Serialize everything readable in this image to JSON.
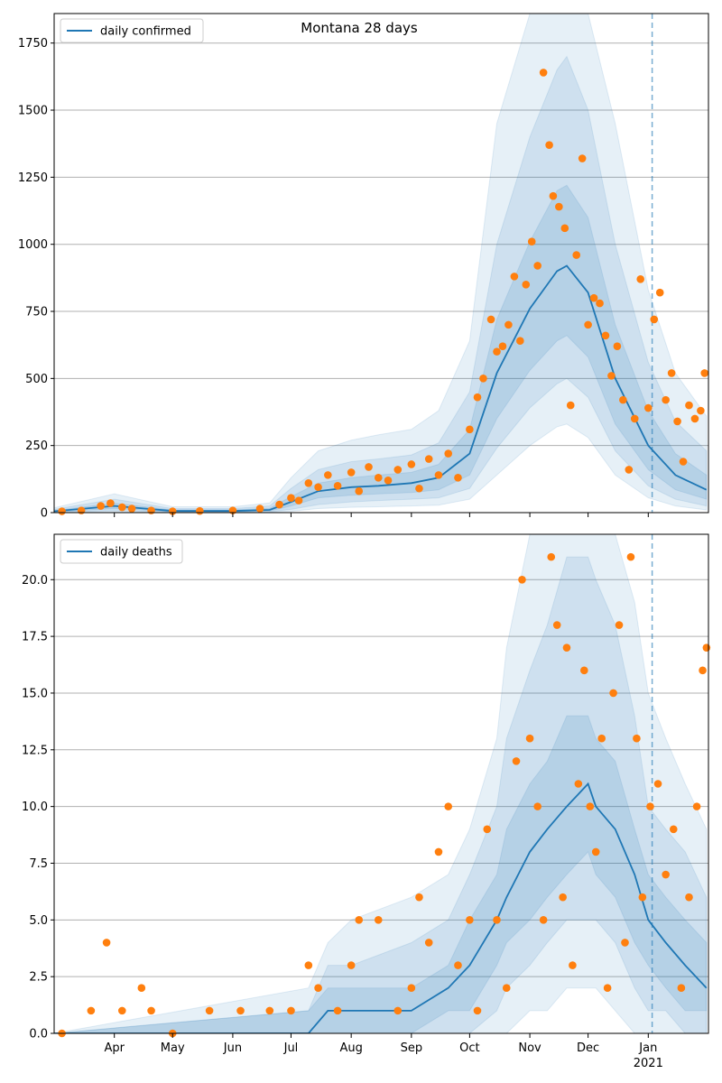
{
  "chart_data": [
    {
      "type": "line",
      "title": "Montana 28 days",
      "legend": {
        "label": "daily confirmed",
        "placement": "top-left"
      },
      "ylim": [
        0,
        1860
      ],
      "yticks": [
        0,
        250,
        500,
        750,
        1000,
        1250,
        1500,
        1750
      ],
      "ytick_labels": [
        "0",
        "250",
        "500",
        "750",
        "1000",
        "1250",
        "1500",
        "1750"
      ],
      "grid": "horizontal",
      "projection_start": "2021-01-03",
      "model": {
        "x": [
          "2020-03-01",
          "2020-04-01",
          "2020-05-01",
          "2020-06-01",
          "2020-06-20",
          "2020-07-01",
          "2020-07-15",
          "2020-08-01",
          "2020-08-15",
          "2020-09-01",
          "2020-09-15",
          "2020-10-01",
          "2020-10-15",
          "2020-11-01",
          "2020-11-15",
          "2020-11-20",
          "2020-12-01",
          "2020-12-15",
          "2021-01-01",
          "2021-01-15",
          "2021-01-31"
        ],
        "median": [
          5,
          25,
          6,
          6,
          10,
          40,
          80,
          95,
          100,
          110,
          130,
          220,
          520,
          760,
          900,
          920,
          820,
          500,
          250,
          140,
          85
        ],
        "inner_low": [
          2,
          15,
          3,
          3,
          6,
          25,
          55,
          65,
          70,
          75,
          85,
          140,
          350,
          530,
          640,
          660,
          580,
          330,
          160,
          85,
          50
        ],
        "inner_high": [
          8,
          35,
          10,
          10,
          16,
          60,
          110,
          130,
          140,
          150,
          180,
          310,
          720,
          1010,
          1200,
          1220,
          1100,
          700,
          380,
          220,
          140
        ],
        "mid_low": [
          1,
          8,
          1,
          1,
          3,
          12,
          30,
          40,
          45,
          50,
          55,
          90,
          240,
          390,
          480,
          500,
          430,
          230,
          100,
          50,
          25
        ],
        "mid_high": [
          12,
          50,
          15,
          15,
          25,
          90,
          160,
          190,
          200,
          215,
          260,
          450,
          1000,
          1400,
          1650,
          1700,
          1500,
          1000,
          560,
          340,
          230
        ],
        "outer_low": [
          0,
          3,
          0,
          0,
          1,
          5,
          15,
          20,
          22,
          25,
          28,
          50,
          140,
          250,
          320,
          330,
          280,
          140,
          55,
          25,
          10
        ],
        "outer_high": [
          18,
          70,
          22,
          22,
          36,
          130,
          230,
          270,
          290,
          310,
          380,
          640,
          1450,
          2000,
          2300,
          2350,
          2100,
          1450,
          830,
          520,
          360
        ]
      },
      "observed": {
        "x": [
          "2020-03-05",
          "2020-03-15",
          "2020-03-25",
          "2020-03-30",
          "2020-04-05",
          "2020-04-10",
          "2020-04-20",
          "2020-05-01",
          "2020-05-15",
          "2020-06-01",
          "2020-06-15",
          "2020-06-25",
          "2020-07-01",
          "2020-07-05",
          "2020-07-10",
          "2020-07-15",
          "2020-07-20",
          "2020-07-25",
          "2020-08-01",
          "2020-08-05",
          "2020-08-10",
          "2020-08-15",
          "2020-08-20",
          "2020-08-25",
          "2020-09-01",
          "2020-09-05",
          "2020-09-10",
          "2020-09-15",
          "2020-09-20",
          "2020-09-25",
          "2020-10-01",
          "2020-10-05",
          "2020-10-08",
          "2020-10-12",
          "2020-10-15",
          "2020-10-18",
          "2020-10-21",
          "2020-10-24",
          "2020-10-27",
          "2020-10-30",
          "2020-11-02",
          "2020-11-05",
          "2020-11-08",
          "2020-11-11",
          "2020-11-13",
          "2020-11-16",
          "2020-11-19",
          "2020-11-22",
          "2020-11-25",
          "2020-11-28",
          "2020-12-01",
          "2020-12-04",
          "2020-12-07",
          "2020-12-10",
          "2020-12-13",
          "2020-12-16",
          "2020-12-19",
          "2020-12-22",
          "2020-12-25",
          "2020-12-28",
          "2021-01-01",
          "2021-01-04",
          "2021-01-07",
          "2021-01-10",
          "2021-01-13",
          "2021-01-16",
          "2021-01-19",
          "2021-01-22",
          "2021-01-25",
          "2021-01-28",
          "2021-01-30"
        ],
        "y": [
          5,
          8,
          25,
          35,
          20,
          15,
          8,
          5,
          6,
          8,
          15,
          30,
          55,
          45,
          110,
          95,
          140,
          100,
          150,
          80,
          170,
          130,
          120,
          160,
          180,
          90,
          200,
          140,
          220,
          130,
          310,
          430,
          500,
          720,
          600,
          620,
          700,
          880,
          640,
          850,
          1010,
          920,
          1640,
          1370,
          1180,
          1140,
          1060,
          400,
          960,
          1320,
          700,
          800,
          780,
          660,
          510,
          620,
          420,
          160,
          350,
          870,
          390,
          720,
          820,
          420,
          520,
          340,
          190,
          400,
          350,
          380,
          520
        ]
      }
    },
    {
      "type": "line",
      "title": "",
      "legend": {
        "label": "daily deaths",
        "placement": "top-left"
      },
      "ylim": [
        0,
        22
      ],
      "yticks": [
        0,
        2.5,
        5,
        7.5,
        10,
        12.5,
        15,
        17.5,
        20
      ],
      "ytick_labels": [
        "0.0",
        "2.5",
        "5.0",
        "7.5",
        "10.0",
        "12.5",
        "15.0",
        "17.5",
        "20.0"
      ],
      "grid": "horizontal",
      "projection_start": "2021-01-03",
      "x_ticks": [
        {
          "date": "2020-04-01",
          "label": "Apr"
        },
        {
          "date": "2020-05-01",
          "label": "May"
        },
        {
          "date": "2020-06-01",
          "label": "Jun"
        },
        {
          "date": "2020-07-01",
          "label": "Jul"
        },
        {
          "date": "2020-08-01",
          "label": "Aug"
        },
        {
          "date": "2020-09-01",
          "label": "Sep"
        },
        {
          "date": "2020-10-01",
          "label": "Oct"
        },
        {
          "date": "2020-11-01",
          "label": "Nov"
        },
        {
          "date": "2020-12-01",
          "label": "Dec"
        },
        {
          "date": "2021-01-01",
          "label": "Jan"
        }
      ],
      "x_year_label": {
        "date": "2021-01-01",
        "label": "2021"
      },
      "model": {
        "x": [
          "2020-03-01",
          "2020-07-10",
          "2020-07-20",
          "2020-08-01",
          "2020-09-01",
          "2020-09-20",
          "2020-10-01",
          "2020-10-15",
          "2020-10-20",
          "2020-11-01",
          "2020-11-10",
          "2020-11-20",
          "2020-12-01",
          "2020-12-05",
          "2020-12-15",
          "2020-12-25",
          "2021-01-01",
          "2021-01-10",
          "2021-01-20",
          "2021-01-31"
        ],
        "median": [
          0,
          0,
          1,
          1,
          1,
          2,
          3,
          5,
          6,
          8,
          9,
          10,
          11,
          10,
          9,
          7,
          5,
          4,
          3,
          2
        ],
        "inner_low": [
          0,
          0,
          0,
          0,
          0,
          1,
          1,
          3,
          4,
          5,
          6,
          7,
          8,
          7,
          6,
          4,
          3,
          2,
          1,
          1
        ],
        "inner_high": [
          0,
          1,
          2,
          2,
          2,
          3,
          5,
          7,
          9,
          11,
          12,
          14,
          14,
          13,
          12,
          9,
          7,
          6,
          5,
          4
        ],
        "mid_low": [
          0,
          0,
          0,
          0,
          0,
          0,
          0,
          1,
          2,
          3,
          4,
          5,
          5,
          5,
          4,
          2,
          1,
          1,
          0,
          0
        ],
        "mid_high": [
          0,
          1,
          3,
          3,
          4,
          5,
          7,
          10,
          13,
          16,
          18,
          21,
          21,
          20,
          18,
          14,
          10,
          9,
          8,
          6
        ],
        "outer_low": [
          0,
          0,
          0,
          0,
          0,
          0,
          0,
          0,
          0,
          1,
          1,
          2,
          2,
          2,
          1,
          0,
          0,
          0,
          0,
          0
        ],
        "outer_high": [
          0,
          2,
          4,
          5,
          6,
          7,
          9,
          13,
          17,
          22,
          25,
          28,
          28,
          27,
          24,
          19,
          15,
          13,
          11,
          9
        ]
      },
      "observed": {
        "x": [
          "2020-03-05",
          "2020-03-20",
          "2020-03-28",
          "2020-04-05",
          "2020-04-15",
          "2020-04-20",
          "2020-05-01",
          "2020-05-20",
          "2020-06-05",
          "2020-06-20",
          "2020-07-01",
          "2020-07-10",
          "2020-07-15",
          "2020-07-25",
          "2020-08-01",
          "2020-08-05",
          "2020-08-15",
          "2020-08-25",
          "2020-09-01",
          "2020-09-05",
          "2020-09-10",
          "2020-09-15",
          "2020-09-20",
          "2020-09-25",
          "2020-10-01",
          "2020-10-05",
          "2020-10-10",
          "2020-10-15",
          "2020-10-20",
          "2020-10-25",
          "2020-10-28",
          "2020-11-01",
          "2020-11-05",
          "2020-11-08",
          "2020-11-12",
          "2020-11-15",
          "2020-11-18",
          "2020-11-20",
          "2020-11-23",
          "2020-11-26",
          "2020-11-29",
          "2020-12-02",
          "2020-12-05",
          "2020-12-08",
          "2020-12-11",
          "2020-12-14",
          "2020-12-17",
          "2020-12-20",
          "2020-12-23",
          "2020-12-26",
          "2020-12-29",
          "2021-01-02",
          "2021-01-06",
          "2021-01-10",
          "2021-01-14",
          "2021-01-18",
          "2021-01-22",
          "2021-01-26",
          "2021-01-29",
          "2021-01-31"
        ],
        "y": [
          0,
          1,
          4,
          1,
          2,
          1,
          0,
          1,
          1,
          1,
          1,
          3,
          2,
          1,
          3,
          5,
          5,
          1,
          2,
          6,
          4,
          8,
          10,
          3,
          5,
          1,
          9,
          5,
          2,
          12,
          20,
          13,
          10,
          5,
          21,
          18,
          6,
          17,
          3,
          11,
          16,
          10,
          8,
          13,
          2,
          15,
          18,
          4,
          21,
          13,
          6,
          10,
          11,
          7,
          9,
          2,
          6,
          10,
          16,
          17
        ]
      }
    }
  ]
}
